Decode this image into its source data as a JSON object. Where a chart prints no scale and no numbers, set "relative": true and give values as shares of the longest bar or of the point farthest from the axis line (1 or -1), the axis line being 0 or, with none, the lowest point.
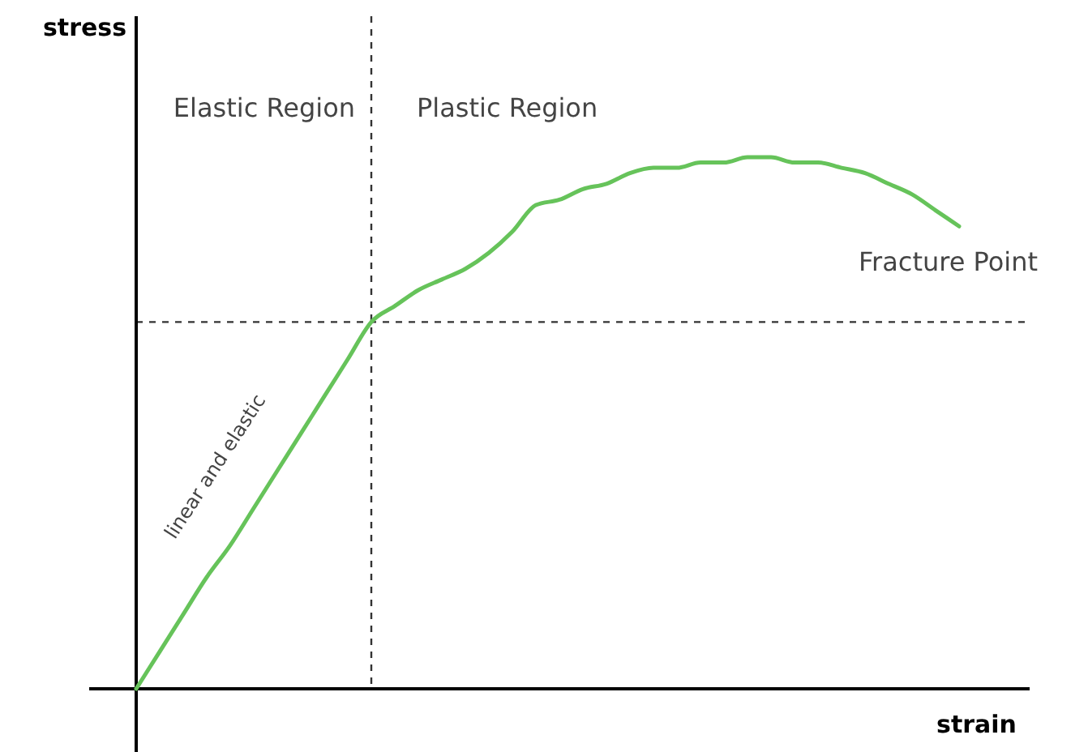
{
  "chart_data": {
    "type": "line",
    "relative": true,
    "xlabel": "strain",
    "ylabel": "stress",
    "categories": [
      null,
      null,
      null,
      null,
      null,
      null,
      null,
      null,
      null,
      null,
      null,
      null,
      null,
      null,
      null,
      null,
      null,
      null,
      null,
      null,
      null,
      null,
      null,
      null,
      null,
      null,
      null,
      null,
      null,
      null,
      null,
      null,
      null,
      null,
      null,
      null,
      null,
      null,
      null
    ],
    "series": [
      {
        "color": "#66c35a",
        "values": [
          0,
          0.07,
          0.14,
          0.21,
          0.27,
          0.34,
          0.41,
          0.48,
          0.55,
          0.62,
          0.69,
          0.72,
          0.75,
          0.77,
          0.79,
          0.82,
          0.86,
          0.91,
          0.92,
          0.94,
          0.95,
          0.97,
          0.98,
          0.98,
          0.99,
          0.99,
          1,
          1,
          0.99,
          0.99,
          0.98,
          0.97,
          0.95,
          0.93,
          0.9,
          0.87,
          null,
          null,
          null
        ]
      }
    ],
    "ref_lines": [
      {
        "axis": "y",
        "value": 0.69,
        "line_style": "dashed"
      }
    ],
    "annotations": [
      "Elastic Region",
      "Plastic Region",
      "Fracture Point",
      "linear and elastic"
    ],
    "marker": "none",
    "line_style": "solid"
  }
}
